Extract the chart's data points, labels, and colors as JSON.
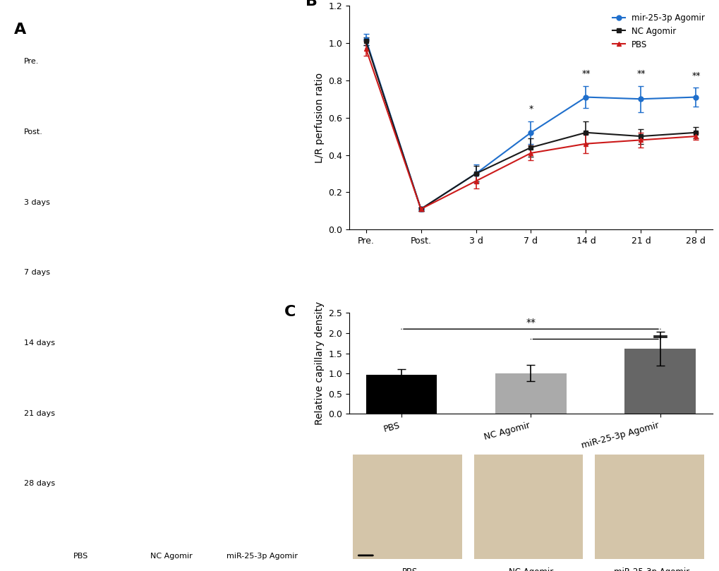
{
  "panel_B": {
    "x_labels": [
      "Pre.",
      "Post.",
      "3 d",
      "7 d",
      "14 d",
      "21 d",
      "28 d"
    ],
    "mir25_mean": [
      1.02,
      0.11,
      0.3,
      0.52,
      0.71,
      0.7,
      0.71
    ],
    "mir25_err": [
      0.03,
      0.01,
      0.05,
      0.06,
      0.06,
      0.07,
      0.05
    ],
    "nc_mean": [
      1.01,
      0.11,
      0.3,
      0.44,
      0.52,
      0.5,
      0.52
    ],
    "nc_err": [
      0.02,
      0.01,
      0.04,
      0.05,
      0.06,
      0.04,
      0.03
    ],
    "pbs_mean": [
      0.97,
      0.11,
      0.26,
      0.41,
      0.46,
      0.48,
      0.5
    ],
    "pbs_err": [
      0.04,
      0.01,
      0.04,
      0.04,
      0.05,
      0.04,
      0.02
    ],
    "ylabel": "L/R perfusion ratio",
    "ylim": [
      0.0,
      1.2
    ],
    "yticks": [
      0.0,
      0.2,
      0.4,
      0.6,
      0.8,
      1.0,
      1.2
    ],
    "mir25_color": "#1f6fcc",
    "nc_color": "#1a1a1a",
    "pbs_color": "#cc1a1a",
    "significance_7d": "*",
    "significance_14d": "**",
    "significance_21d": "**",
    "significance_28d": "**",
    "legend_labels": [
      "mir-25-3p Agomir",
      "NC Agomir",
      "PBS"
    ]
  },
  "panel_C": {
    "categories": [
      "PBS",
      "NC Agomir",
      "miR-25-3p Agomir"
    ],
    "means": [
      0.97,
      1.01,
      1.62
    ],
    "errors": [
      0.14,
      0.2,
      0.42
    ],
    "bar_colors": [
      "#000000",
      "#aaaaaa",
      "#666666"
    ],
    "ylabel": "Relative capillary density",
    "ylim": [
      0.0,
      2.5
    ],
    "yticks": [
      0.0,
      0.5,
      1.0,
      1.5,
      2.0,
      2.5
    ],
    "significance": "**"
  },
  "panel_A_label": "A",
  "panel_B_label": "B",
  "panel_C_label": "C",
  "background_color": "#ffffff",
  "font_size": 10,
  "tick_font_size": 9
}
